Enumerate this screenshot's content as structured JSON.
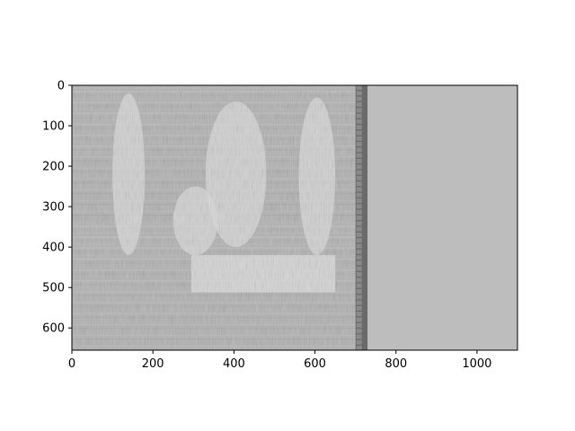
{
  "chart_data": {
    "type": "heatmap",
    "title": "",
    "xlabel": "",
    "ylabel": "",
    "xlim": [
      0,
      1100
    ],
    "ylim": [
      655,
      0
    ],
    "x_ticks": [
      0,
      200,
      400,
      600,
      800,
      1000
    ],
    "y_ticks": [
      0,
      100,
      200,
      300,
      400,
      500,
      600
    ],
    "x_tick_labels": [
      "0",
      "200",
      "400",
      "600",
      "800",
      "1000"
    ],
    "y_tick_labels": [
      "0",
      "100",
      "200",
      "300",
      "400",
      "500",
      "600"
    ],
    "grid": false,
    "colormap": "gray",
    "image_description_regions": {
      "uniform_fill_value": 0.74,
      "uniform_fill_x_range": [
        730,
        1100
      ],
      "dark_band_x_range": [
        700,
        730
      ],
      "bright_block_x_range": [
        295,
        650
      ],
      "bright_block_y_range": [
        420,
        512
      ]
    },
    "colors": {
      "background_gray": "#bdbdbd",
      "mid_gray": "#b0b0b0",
      "light_gray": "#d9d9d9",
      "dark_band": "#555555",
      "axis": "#000000"
    }
  }
}
